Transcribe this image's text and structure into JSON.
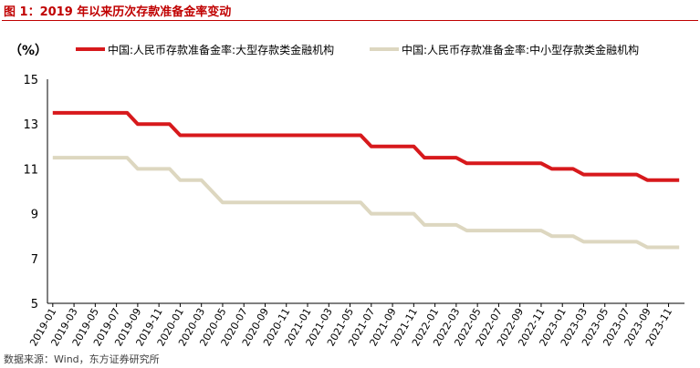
{
  "title": "图 1：2019 年以来历次存款准备金率变动",
  "source": "数据来源：Wind，东方证券研究所",
  "chart_data": {
    "type": "line",
    "unit": "（%）",
    "ylim": [
      5,
      15
    ],
    "yticks": [
      5,
      7,
      9,
      11,
      13,
      15
    ],
    "x_tick_labels": [
      "2019-01",
      "2019-03",
      "2019-05",
      "2019-07",
      "2019-09",
      "2019-11",
      "2020-01",
      "2020-03",
      "2020-05",
      "2020-07",
      "2020-09",
      "2020-11",
      "2021-01",
      "2021-03",
      "2021-05",
      "2021-07",
      "2021-09",
      "2021-11",
      "2022-01",
      "2022-03",
      "2022-05",
      "2022-07",
      "2022-09",
      "2022-11",
      "2023-01",
      "2023-03",
      "2023-05",
      "2023-07",
      "2023-09",
      "2023-11"
    ],
    "x": [
      "2019-01",
      "2019-02",
      "2019-03",
      "2019-04",
      "2019-05",
      "2019-06",
      "2019-07",
      "2019-08",
      "2019-09",
      "2019-10",
      "2019-11",
      "2019-12",
      "2020-01",
      "2020-02",
      "2020-03",
      "2020-04",
      "2020-05",
      "2020-06",
      "2020-07",
      "2020-08",
      "2020-09",
      "2020-10",
      "2020-11",
      "2020-12",
      "2021-01",
      "2021-02",
      "2021-03",
      "2021-04",
      "2021-05",
      "2021-06",
      "2021-07",
      "2021-08",
      "2021-09",
      "2021-10",
      "2021-11",
      "2021-12",
      "2022-01",
      "2022-02",
      "2022-03",
      "2022-04",
      "2022-05",
      "2022-06",
      "2022-07",
      "2022-08",
      "2022-09",
      "2022-10",
      "2022-11",
      "2022-12",
      "2023-01",
      "2023-02",
      "2023-03",
      "2023-04",
      "2023-05",
      "2023-06",
      "2023-07",
      "2023-08",
      "2023-09",
      "2023-10",
      "2023-11",
      "2023-12"
    ],
    "series": [
      {
        "name": "中国:人民币存款准备金率:大型存款类金融机构",
        "color": "#d7191c",
        "values": [
          13.5,
          13.5,
          13.5,
          13.5,
          13.5,
          13.5,
          13.5,
          13.5,
          13.0,
          13.0,
          13.0,
          13.0,
          12.5,
          12.5,
          12.5,
          12.5,
          12.5,
          12.5,
          12.5,
          12.5,
          12.5,
          12.5,
          12.5,
          12.5,
          12.5,
          12.5,
          12.5,
          12.5,
          12.5,
          12.5,
          12.0,
          12.0,
          12.0,
          12.0,
          12.0,
          11.5,
          11.5,
          11.5,
          11.5,
          11.25,
          11.25,
          11.25,
          11.25,
          11.25,
          11.25,
          11.25,
          11.25,
          11.0,
          11.0,
          11.0,
          10.75,
          10.75,
          10.75,
          10.75,
          10.75,
          10.75,
          10.5,
          10.5,
          10.5,
          10.5
        ]
      },
      {
        "name": "中国:人民币存款准备金率:中小型存款类金融机构",
        "color": "#ddd7c0",
        "values": [
          11.5,
          11.5,
          11.5,
          11.5,
          11.5,
          11.5,
          11.5,
          11.5,
          11.0,
          11.0,
          11.0,
          11.0,
          10.5,
          10.5,
          10.5,
          10.0,
          9.5,
          9.5,
          9.5,
          9.5,
          9.5,
          9.5,
          9.5,
          9.5,
          9.5,
          9.5,
          9.5,
          9.5,
          9.5,
          9.5,
          9.0,
          9.0,
          9.0,
          9.0,
          9.0,
          8.5,
          8.5,
          8.5,
          8.5,
          8.25,
          8.25,
          8.25,
          8.25,
          8.25,
          8.25,
          8.25,
          8.25,
          8.0,
          8.0,
          8.0,
          7.75,
          7.75,
          7.75,
          7.75,
          7.75,
          7.75,
          7.5,
          7.5,
          7.5,
          7.5
        ]
      }
    ],
    "grid": false,
    "legend_position": "top"
  }
}
